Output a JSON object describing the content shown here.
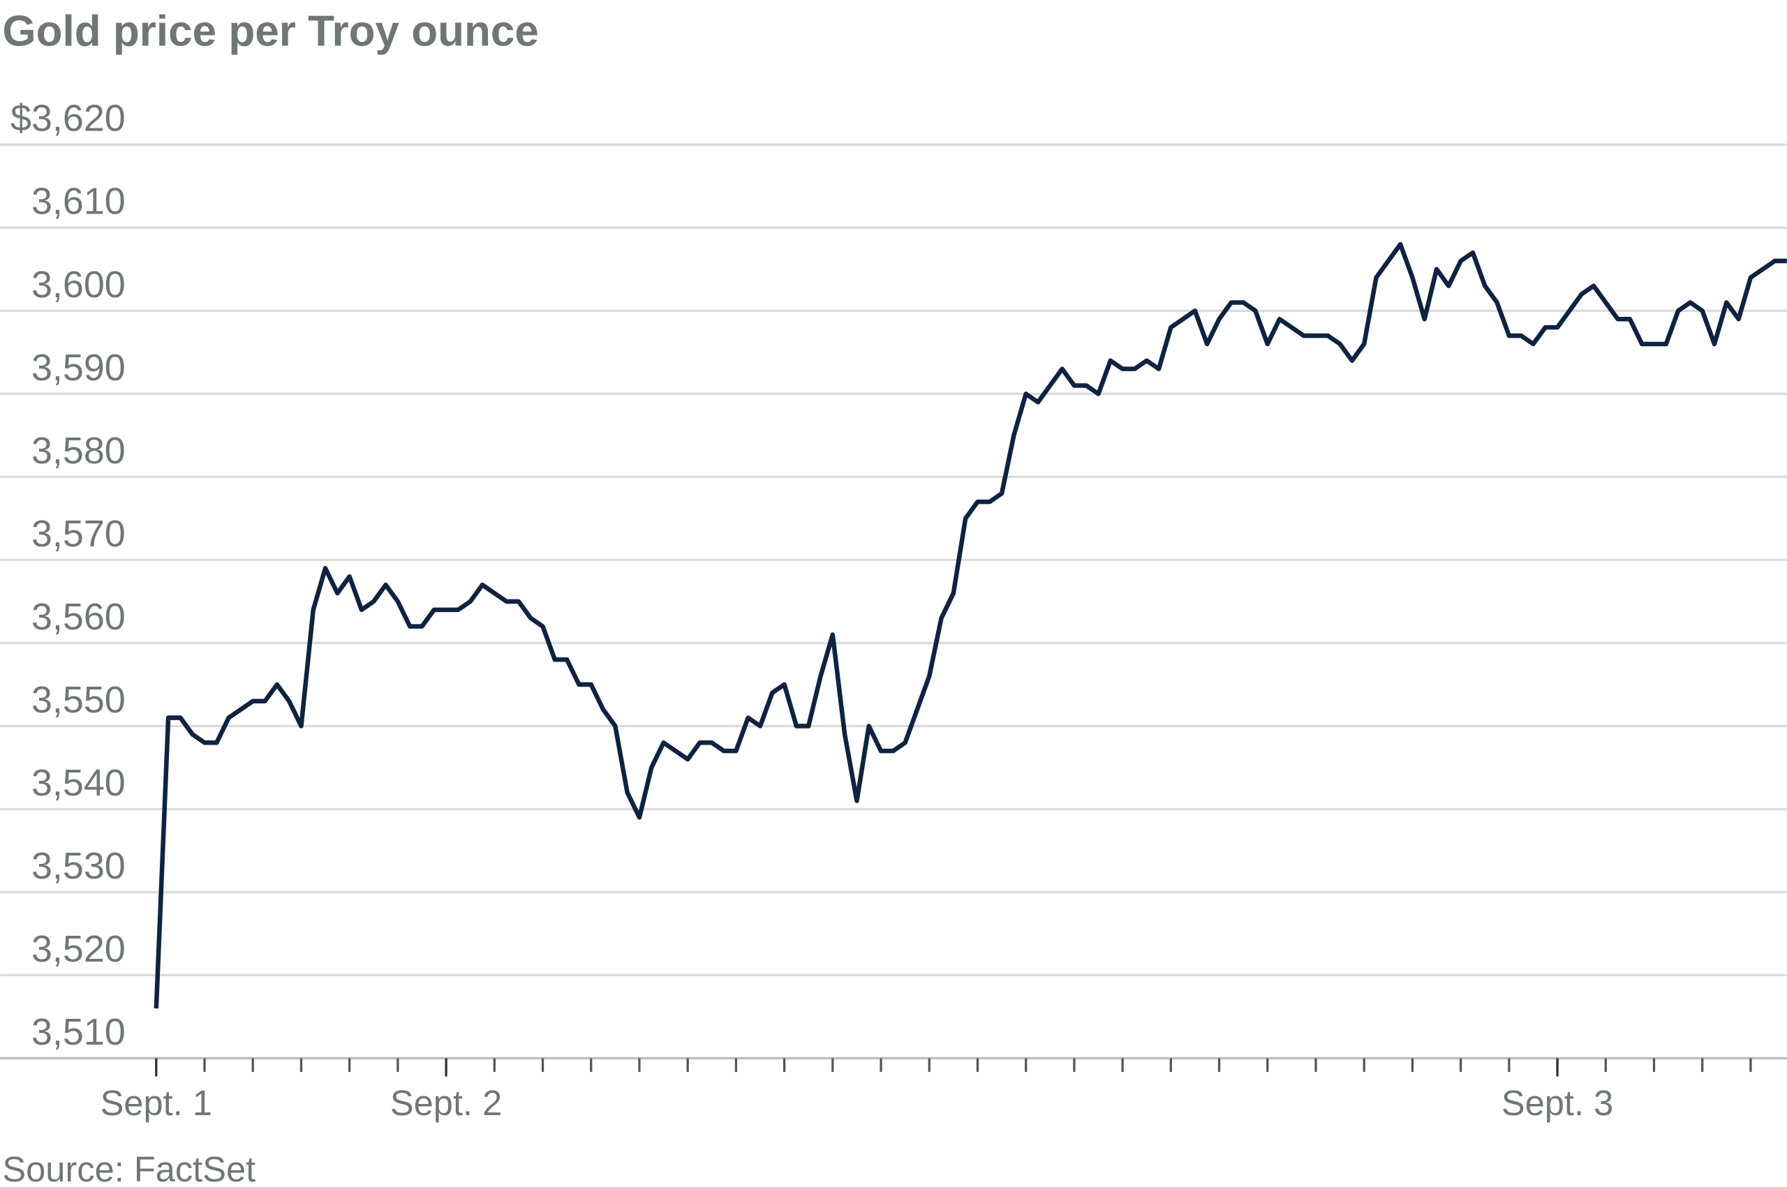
{
  "chart_data": {
    "type": "line",
    "title": "Gold price per Troy ounce",
    "source": "Source: FactSet",
    "categories": [
      "Sept. 1",
      null,
      null,
      null,
      null,
      null,
      null,
      null,
      null,
      null,
      null,
      null,
      null,
      null,
      null,
      null,
      null,
      null,
      null,
      null,
      null,
      null,
      null,
      null,
      "Sept. 2",
      null,
      null,
      null,
      null,
      null,
      null,
      null,
      null,
      null,
      null,
      null,
      null,
      null,
      null,
      null,
      null,
      null,
      null,
      null,
      null,
      null,
      null,
      null,
      null,
      null,
      null,
      null,
      null,
      null,
      null,
      null,
      null,
      null,
      null,
      null,
      null,
      null,
      null,
      null,
      null,
      null,
      null,
      null,
      null,
      null,
      null,
      null,
      null,
      null,
      null,
      null,
      null,
      null,
      null,
      null,
      null,
      null,
      null,
      null,
      null,
      null,
      null,
      null,
      null,
      null,
      null,
      null,
      null,
      null,
      null,
      null,
      null,
      null,
      null,
      null,
      null,
      null,
      null,
      null,
      null,
      null,
      null,
      null,
      null,
      null,
      null,
      null,
      null,
      null,
      null,
      null,
      "Sept. 3",
      null,
      null,
      null,
      null,
      null,
      null,
      null,
      null,
      null,
      null,
      null,
      null,
      null,
      null,
      null,
      null,
      null,
      null,
      null
    ],
    "series": [
      {
        "name": "Gold price",
        "color": "#0f2341",
        "values": [
          3516,
          3551,
          3551,
          3549,
          3548,
          3548,
          3551,
          3552,
          3553,
          3553,
          3555,
          3553,
          3550,
          3564,
          3569,
          3566,
          3568,
          3564,
          3565,
          3567,
          3565,
          3562,
          3562,
          3564,
          3564,
          3564,
          3565,
          3567,
          3566,
          3565,
          3565,
          3563,
          3562,
          3558,
          3558,
          3555,
          3555,
          3552,
          3550,
          3542,
          3539,
          3545,
          3548,
          3547,
          3546,
          3548,
          3548,
          3547,
          3547,
          3551,
          3550,
          3554,
          3555,
          3550,
          3550,
          3556,
          3561,
          3549,
          3541,
          3550,
          3547,
          3547,
          3548,
          3552,
          3556,
          3563,
          3566,
          3575,
          3577,
          3577,
          3578,
          3585,
          3590,
          3589,
          3591,
          3593,
          3591,
          3591,
          3590,
          3594,
          3593,
          3593,
          3594,
          3593,
          3598,
          3599,
          3600,
          3596,
          3599,
          3601,
          3601,
          3600,
          3596,
          3599,
          3598,
          3597,
          3597,
          3597,
          3596,
          3594,
          3596,
          3604,
          3606,
          3608,
          3604,
          3599,
          3605,
          3603,
          3606,
          3607,
          3603,
          3601,
          3597,
          3597,
          3596,
          3598,
          3598,
          3600,
          3602,
          3603,
          3601,
          3599,
          3599,
          3596,
          3596,
          3596,
          3600,
          3601,
          3600,
          3596,
          3601,
          3599,
          3604,
          3605,
          3606,
          3606
        ]
      }
    ],
    "ylim": [
      3510,
      3620
    ],
    "yticks": [
      {
        "value": 3510,
        "label": "3,510"
      },
      {
        "value": 3520,
        "label": "3,520"
      },
      {
        "value": 3530,
        "label": "3,530"
      },
      {
        "value": 3540,
        "label": "3,540"
      },
      {
        "value": 3550,
        "label": "3,550"
      },
      {
        "value": 3560,
        "label": "3,560"
      },
      {
        "value": 3570,
        "label": "3,570"
      },
      {
        "value": 3580,
        "label": "3,580"
      },
      {
        "value": 3590,
        "label": "3,590"
      },
      {
        "value": 3600,
        "label": "3,600"
      },
      {
        "value": 3610,
        "label": "3,610"
      },
      {
        "value": 3620,
        "label": "$3,620"
      }
    ],
    "grid": true
  }
}
